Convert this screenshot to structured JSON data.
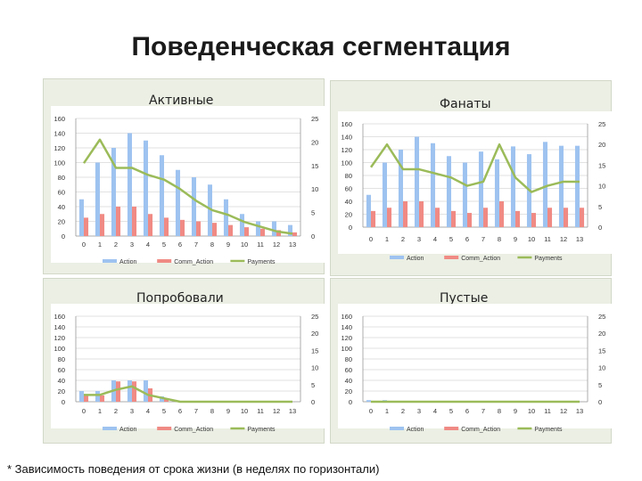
{
  "title": "Поведенческая сегментация",
  "footnote": "* Зависимость поведения от срока жизни (в неделях по горизонтали)",
  "colors": {
    "action": "#9ec3f0",
    "comm_action": "#f08a84",
    "payments": "#9bbb59",
    "panel_bg": "#ebefe4"
  },
  "chart_data": [
    {
      "type": "bar",
      "title": "Активные",
      "categories": [
        "0",
        "1",
        "2",
        "3",
        "4",
        "5",
        "6",
        "7",
        "8",
        "9",
        "10",
        "11",
        "12",
        "13"
      ],
      "ylim": [
        0,
        160
      ],
      "y_ticks": [
        "0",
        "20",
        "40",
        "60",
        "80",
        "100",
        "120",
        "140",
        "160"
      ],
      "y2lim": [
        0,
        25
      ],
      "y2_ticks": [
        "0",
        "5",
        "10",
        "15",
        "20",
        "25"
      ],
      "series": [
        {
          "name": "Action",
          "axis": "left",
          "type": "bar",
          "values": [
            50,
            100,
            120,
            140,
            130,
            110,
            90,
            80,
            70,
            50,
            30,
            20,
            20,
            15
          ]
        },
        {
          "name": "Comm_Action",
          "axis": "left",
          "type": "bar",
          "values": [
            25,
            30,
            40,
            40,
            30,
            25,
            22,
            20,
            18,
            15,
            12,
            10,
            8,
            5
          ]
        },
        {
          "name": "Payments",
          "axis": "right",
          "type": "line",
          "values": [
            15.5,
            20.5,
            14.5,
            14.5,
            13,
            12,
            10,
            7.5,
            5.5,
            4.5,
            3,
            2,
            1,
            0.5
          ]
        }
      ],
      "legend": "bottom"
    },
    {
      "type": "bar",
      "title": "Фанаты",
      "categories": [
        "0",
        "1",
        "2",
        "3",
        "4",
        "5",
        "6",
        "7",
        "8",
        "9",
        "10",
        "11",
        "12",
        "13"
      ],
      "ylim": [
        0,
        160
      ],
      "y_ticks": [
        "0",
        "20",
        "40",
        "60",
        "80",
        "100",
        "120",
        "140",
        "160"
      ],
      "y2lim": [
        0,
        25
      ],
      "y2_ticks": [
        "0",
        "5",
        "10",
        "15",
        "20",
        "25"
      ],
      "series": [
        {
          "name": "Action",
          "axis": "left",
          "type": "bar",
          "values": [
            50,
            100,
            120,
            140,
            130,
            110,
            100,
            117,
            105,
            125,
            113,
            132,
            126,
            126
          ]
        },
        {
          "name": "Comm_Action",
          "axis": "left",
          "type": "bar",
          "values": [
            25,
            30,
            40,
            40,
            30,
            25,
            22,
            30,
            40,
            25,
            22,
            30,
            30,
            30
          ]
        },
        {
          "name": "Payments",
          "axis": "right",
          "type": "line",
          "values": [
            14.5,
            20,
            14,
            14,
            13,
            12,
            10,
            11,
            20,
            12,
            8.5,
            10,
            11,
            11
          ]
        }
      ],
      "legend": "bottom"
    },
    {
      "type": "bar",
      "title": "Попробовали",
      "categories": [
        "0",
        "1",
        "2",
        "3",
        "4",
        "5",
        "6",
        "7",
        "8",
        "9",
        "10",
        "11",
        "12",
        "13"
      ],
      "ylim": [
        0,
        160
      ],
      "y_ticks": [
        "0",
        "20",
        "40",
        "60",
        "80",
        "100",
        "120",
        "140",
        "160"
      ],
      "y2lim": [
        0,
        25
      ],
      "y2_ticks": [
        "0",
        "5",
        "10",
        "15",
        "20",
        "25"
      ],
      "series": [
        {
          "name": "Action",
          "axis": "left",
          "type": "bar",
          "values": [
            20,
            20,
            40,
            40,
            40,
            10,
            0,
            0,
            0,
            0,
            0,
            0,
            0,
            0
          ]
        },
        {
          "name": "Comm_Action",
          "axis": "left",
          "type": "bar",
          "values": [
            12,
            12,
            38,
            38,
            25,
            5,
            0,
            0,
            0,
            0,
            0,
            0,
            0,
            0
          ]
        },
        {
          "name": "Payments",
          "axis": "right",
          "type": "line",
          "values": [
            2,
            2,
            3.5,
            4.5,
            2,
            1,
            0,
            0,
            0,
            0,
            0,
            0,
            0,
            0
          ]
        }
      ],
      "legend": "bottom"
    },
    {
      "type": "bar",
      "title": "Пустые",
      "categories": [
        "0",
        "1",
        "2",
        "3",
        "4",
        "5",
        "6",
        "7",
        "8",
        "9",
        "10",
        "11",
        "12",
        "13"
      ],
      "ylim": [
        0,
        160
      ],
      "y_ticks": [
        "0",
        "20",
        "40",
        "60",
        "80",
        "100",
        "120",
        "140",
        "160"
      ],
      "y2lim": [
        0,
        25
      ],
      "y2_ticks": [
        "0",
        "5",
        "10",
        "15",
        "20",
        "25"
      ],
      "series": [
        {
          "name": "Action",
          "axis": "left",
          "type": "bar",
          "values": [
            3,
            3,
            0,
            0,
            0,
            0,
            0,
            0,
            0,
            0,
            0,
            0,
            0,
            0
          ]
        },
        {
          "name": "Comm_Action",
          "axis": "left",
          "type": "bar",
          "values": [
            0,
            0,
            0,
            0,
            0,
            0,
            0,
            0,
            0,
            0,
            0,
            0,
            0,
            0
          ]
        },
        {
          "name": "Payments",
          "axis": "right",
          "type": "line",
          "values": [
            0,
            0,
            0,
            0,
            0,
            0,
            0,
            0,
            0,
            0,
            0,
            0,
            0,
            0
          ]
        }
      ],
      "legend": "bottom"
    }
  ]
}
